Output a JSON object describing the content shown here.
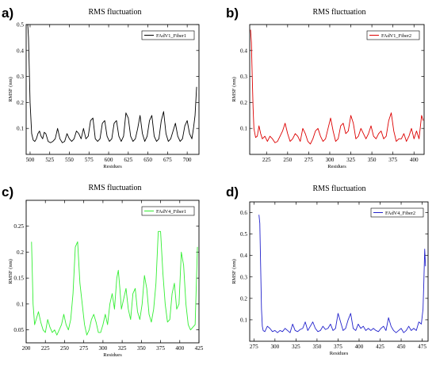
{
  "chart_data": [
    {
      "type": "line",
      "panel_label": "a)",
      "title": "RMS fluctuation",
      "xlabel": "Residues",
      "ylabel": "RMSF (nm)",
      "xlim": [
        495,
        715
      ],
      "ylim": [
        0,
        0.5
      ],
      "xticks": [
        500,
        525,
        550,
        575,
        600,
        625,
        650,
        675,
        700
      ],
      "yticks": [
        0.1,
        0.2,
        0.3,
        0.4,
        0.5
      ],
      "legend": "top-right",
      "series": [
        {
          "name": "FAdV1_Fiber1",
          "color": "#000000",
          "x": [
            497,
            498,
            500,
            502,
            504,
            506,
            508,
            510,
            512,
            514,
            516,
            518,
            520,
            523,
            526,
            529,
            532,
            535,
            538,
            541,
            544,
            547,
            550,
            553,
            556,
            559,
            562,
            565,
            568,
            571,
            574,
            577,
            580,
            583,
            586,
            589,
            592,
            595,
            598,
            601,
            604,
            607,
            610,
            613,
            616,
            619,
            622,
            625,
            628,
            631,
            634,
            637,
            640,
            643,
            646,
            649,
            652,
            655,
            658,
            661,
            664,
            667,
            670,
            673,
            676,
            679,
            682,
            685,
            688,
            691,
            694,
            697,
            700,
            703,
            706,
            708,
            710,
            712
          ],
          "values": [
            0.5,
            0.45,
            0.2,
            0.08,
            0.055,
            0.05,
            0.06,
            0.08,
            0.09,
            0.07,
            0.06,
            0.085,
            0.08,
            0.05,
            0.045,
            0.05,
            0.06,
            0.1,
            0.06,
            0.045,
            0.05,
            0.08,
            0.06,
            0.05,
            0.06,
            0.09,
            0.08,
            0.06,
            0.1,
            0.06,
            0.07,
            0.13,
            0.14,
            0.06,
            0.05,
            0.06,
            0.12,
            0.13,
            0.07,
            0.05,
            0.06,
            0.12,
            0.13,
            0.07,
            0.05,
            0.07,
            0.16,
            0.14,
            0.07,
            0.05,
            0.06,
            0.1,
            0.15,
            0.08,
            0.05,
            0.07,
            0.13,
            0.15,
            0.07,
            0.05,
            0.06,
            0.13,
            0.165,
            0.08,
            0.05,
            0.06,
            0.09,
            0.12,
            0.07,
            0.05,
            0.06,
            0.11,
            0.13,
            0.08,
            0.06,
            0.1,
            0.15,
            0.26
          ]
        }
      ]
    },
    {
      "type": "line",
      "panel_label": "b)",
      "title": "RMS fluctuation",
      "xlabel": "Residues",
      "ylabel": "RMSF (nm)",
      "xlim": [
        205,
        412
      ],
      "ylim": [
        0,
        0.5
      ],
      "xticks": [
        225,
        250,
        275,
        300,
        325,
        350,
        375,
        400
      ],
      "yticks": [
        0.1,
        0.2,
        0.3,
        0.4
      ],
      "legend": "top-right",
      "series": [
        {
          "name": "FAdV1_Fiber2",
          "color": "#dd0000",
          "x": [
            206,
            207,
            208,
            209,
            210,
            212,
            214,
            216,
            218,
            220,
            223,
            226,
            229,
            232,
            235,
            238,
            241,
            244,
            247,
            250,
            253,
            256,
            259,
            262,
            265,
            268,
            271,
            274,
            277,
            280,
            283,
            286,
            289,
            292,
            295,
            298,
            301,
            304,
            307,
            310,
            313,
            316,
            319,
            322,
            325,
            328,
            331,
            334,
            337,
            340,
            343,
            346,
            349,
            352,
            355,
            358,
            361,
            364,
            367,
            370,
            373,
            376,
            379,
            382,
            385,
            388,
            391,
            394,
            397,
            400,
            403,
            406,
            409,
            411
          ],
          "values": [
            0.48,
            0.43,
            0.3,
            0.18,
            0.1,
            0.065,
            0.07,
            0.11,
            0.08,
            0.06,
            0.07,
            0.05,
            0.07,
            0.06,
            0.045,
            0.05,
            0.07,
            0.09,
            0.12,
            0.08,
            0.05,
            0.06,
            0.08,
            0.07,
            0.05,
            0.1,
            0.08,
            0.05,
            0.04,
            0.06,
            0.09,
            0.1,
            0.07,
            0.05,
            0.06,
            0.1,
            0.14,
            0.09,
            0.05,
            0.06,
            0.11,
            0.12,
            0.08,
            0.09,
            0.15,
            0.12,
            0.06,
            0.07,
            0.1,
            0.08,
            0.06,
            0.08,
            0.11,
            0.07,
            0.06,
            0.08,
            0.09,
            0.06,
            0.07,
            0.13,
            0.16,
            0.09,
            0.05,
            0.06,
            0.06,
            0.08,
            0.05,
            0.07,
            0.1,
            0.06,
            0.09,
            0.06,
            0.15,
            0.13
          ]
        }
      ]
    },
    {
      "type": "line",
      "panel_label": "c)",
      "title": "RMS fluctuation",
      "xlabel": "Residues",
      "ylabel": "RMSF (nm)",
      "xlim": [
        200,
        425
      ],
      "ylim": [
        0.025,
        0.3
      ],
      "xticks": [
        200,
        225,
        250,
        275,
        300,
        325,
        350,
        375,
        400,
        425
      ],
      "yticks": [
        0.05,
        0.1,
        0.15,
        0.2,
        0.25
      ],
      "legend": "top-right",
      "series": [
        {
          "name": "FAdV4_Fiber1",
          "color": "#33ee33",
          "x": [
            207,
            209,
            211,
            213,
            216,
            219,
            222,
            225,
            228,
            231,
            234,
            237,
            240,
            243,
            246,
            249,
            252,
            255,
            258,
            261,
            264,
            267,
            270,
            273,
            276,
            279,
            282,
            285,
            288,
            291,
            294,
            297,
            300,
            303,
            306,
            309,
            312,
            315,
            318,
            320,
            322,
            324,
            327,
            330,
            333,
            336,
            339,
            342,
            345,
            348,
            351,
            354,
            357,
            360,
            363,
            366,
            369,
            372,
            375,
            378,
            381,
            384,
            387,
            390,
            393,
            396,
            399,
            402,
            405,
            408,
            411,
            414,
            417,
            420,
            423
          ],
          "values": [
            0.22,
            0.1,
            0.06,
            0.07,
            0.085,
            0.065,
            0.05,
            0.045,
            0.07,
            0.055,
            0.045,
            0.05,
            0.04,
            0.05,
            0.06,
            0.08,
            0.06,
            0.05,
            0.07,
            0.12,
            0.21,
            0.22,
            0.14,
            0.1,
            0.06,
            0.04,
            0.05,
            0.07,
            0.08,
            0.065,
            0.045,
            0.045,
            0.06,
            0.08,
            0.06,
            0.1,
            0.12,
            0.09,
            0.15,
            0.165,
            0.13,
            0.09,
            0.11,
            0.13,
            0.09,
            0.07,
            0.12,
            0.13,
            0.085,
            0.07,
            0.1,
            0.155,
            0.13,
            0.08,
            0.065,
            0.09,
            0.14,
            0.24,
            0.24,
            0.16,
            0.1,
            0.065,
            0.07,
            0.12,
            0.14,
            0.09,
            0.1,
            0.2,
            0.175,
            0.1,
            0.06,
            0.05,
            0.055,
            0.06,
            0.21
          ]
        }
      ]
    },
    {
      "type": "line",
      "panel_label": "d)",
      "title": "RMS fluctuation",
      "xlabel": "Residues",
      "ylabel": "RMSF (nm)",
      "xlim": [
        270,
        482
      ],
      "ylim": [
        0,
        0.65
      ],
      "xticks": [
        275,
        300,
        325,
        350,
        375,
        400,
        425,
        450,
        475
      ],
      "yticks": [
        0.1,
        0.2,
        0.3,
        0.4,
        0.5,
        0.6
      ],
      "legend": "top-right",
      "series": [
        {
          "name": "FAdV4_Fiber2",
          "color": "#2222cc",
          "x": [
            281,
            282,
            283,
            284,
            285,
            286,
            288,
            291,
            294,
            297,
            300,
            303,
            306,
            309,
            312,
            315,
            318,
            321,
            324,
            327,
            330,
            333,
            336,
            339,
            342,
            345,
            348,
            351,
            354,
            357,
            360,
            363,
            366,
            369,
            372,
            375,
            378,
            381,
            384,
            387,
            390,
            393,
            396,
            399,
            402,
            405,
            408,
            411,
            414,
            417,
            420,
            423,
            426,
            429,
            432,
            435,
            438,
            441,
            444,
            447,
            450,
            453,
            456,
            459,
            462,
            465,
            468,
            471,
            474,
            476,
            477,
            478,
            479
          ],
          "values": [
            0.59,
            0.55,
            0.35,
            0.15,
            0.07,
            0.05,
            0.045,
            0.07,
            0.06,
            0.045,
            0.05,
            0.04,
            0.05,
            0.045,
            0.06,
            0.05,
            0.04,
            0.08,
            0.05,
            0.045,
            0.055,
            0.06,
            0.09,
            0.05,
            0.07,
            0.09,
            0.06,
            0.045,
            0.05,
            0.07,
            0.055,
            0.06,
            0.08,
            0.05,
            0.06,
            0.13,
            0.09,
            0.05,
            0.06,
            0.1,
            0.13,
            0.06,
            0.05,
            0.08,
            0.06,
            0.07,
            0.05,
            0.06,
            0.05,
            0.06,
            0.05,
            0.045,
            0.06,
            0.07,
            0.05,
            0.11,
            0.07,
            0.05,
            0.04,
            0.05,
            0.06,
            0.04,
            0.05,
            0.07,
            0.05,
            0.06,
            0.05,
            0.09,
            0.08,
            0.15,
            0.28,
            0.43,
            0.35
          ]
        }
      ]
    }
  ]
}
